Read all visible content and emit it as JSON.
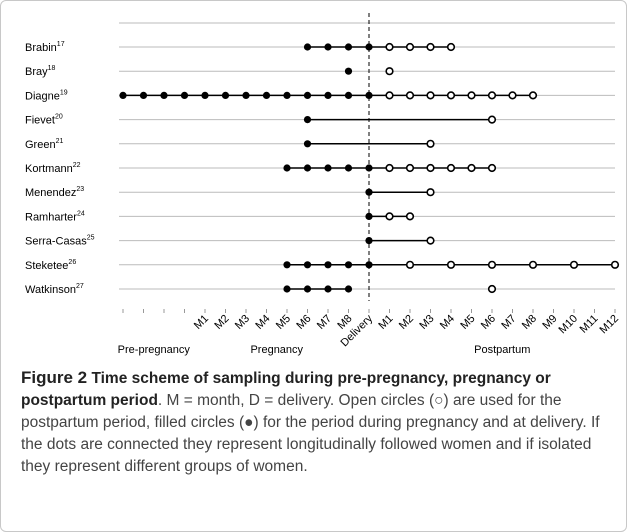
{
  "figure": {
    "timepoints": [
      null,
      null,
      null,
      null,
      "M1",
      "M2",
      "M3",
      "M4",
      "M5",
      "M6",
      "M7",
      "M8",
      "Delivery",
      "M1",
      "M2",
      "M3",
      "M4",
      "M5",
      "M6",
      "M7",
      "M8",
      "M9",
      "M10",
      "M11",
      "M12"
    ],
    "delivery_index": 12,
    "groups": [
      {
        "label": "Pre-pregnancy",
        "at": 1.5
      },
      {
        "label": "Pregnancy",
        "at": 7.5
      },
      {
        "label": "Postpartum",
        "at": 18.5
      }
    ],
    "studies": [
      {
        "name": "Brabin",
        "ref": "17",
        "filled": [
          9,
          10,
          11,
          12
        ],
        "open": [
          13,
          14,
          15,
          16
        ],
        "line": [
          9,
          16
        ]
      },
      {
        "name": "Bray",
        "ref": "18",
        "filled": [
          11
        ],
        "open": [
          13
        ]
      },
      {
        "name": "Diagne",
        "ref": "19",
        "filled": [
          0,
          1,
          2,
          3,
          4,
          5,
          6,
          7,
          8,
          9,
          10,
          11,
          12
        ],
        "open": [
          13,
          14,
          15,
          16,
          17,
          18,
          19,
          20
        ],
        "line": [
          0,
          20
        ]
      },
      {
        "name": "Fievet",
        "ref": "20",
        "filled": [
          9
        ],
        "open": [
          18
        ],
        "line": [
          9,
          18
        ]
      },
      {
        "name": "Green",
        "ref": "21",
        "filled": [
          9
        ],
        "open": [
          15
        ],
        "line": [
          9,
          15
        ]
      },
      {
        "name": "Kortmann",
        "ref": "22",
        "filled": [
          8,
          9,
          10,
          11,
          12
        ],
        "open": [
          13,
          14,
          15,
          16,
          17,
          18
        ],
        "line": [
          8,
          18
        ]
      },
      {
        "name": "Menendez",
        "ref": "23",
        "filled": [
          12
        ],
        "open": [
          15
        ],
        "line": [
          12,
          15
        ]
      },
      {
        "name": "Ramharter",
        "ref": "24",
        "filled": [
          12
        ],
        "open": [
          13,
          14
        ],
        "line": [
          12,
          14
        ]
      },
      {
        "name": "Serra-Casas",
        "ref": "25",
        "filled": [
          12
        ],
        "open": [
          15
        ],
        "line": [
          12,
          15
        ]
      },
      {
        "name": "Steketee",
        "ref": "26",
        "filled": [
          8,
          9,
          10,
          11,
          12
        ],
        "open": [
          14,
          16,
          18,
          20,
          22,
          24
        ],
        "line": [
          8,
          24
        ]
      },
      {
        "name": "Watkinson",
        "ref": "27",
        "filled": [
          8,
          9,
          10,
          11
        ],
        "open": [
          18
        ],
        "line": [
          8,
          11
        ]
      }
    ],
    "caption": {
      "label": "Figure 2",
      "title": "Time scheme of sampling during pre-pregnancy, pregnancy or postpartum period",
      "text": ". M = month, D = delivery. Open circles (○) are used for the postpartum period, filled circles (●) for the period during pregnancy and at delivery. If the dots are connected they represent longitudinally followed women and if isolated they represent different groups of women."
    }
  }
}
